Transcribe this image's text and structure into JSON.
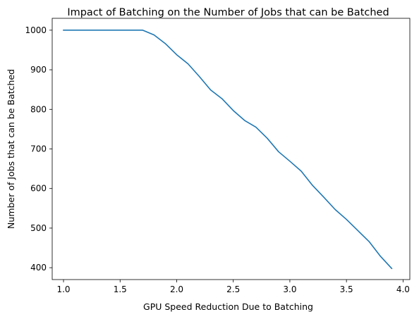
{
  "chart_data": {
    "type": "line",
    "title": "Impact of Batching on the Number of Jobs that can be Batched",
    "xlabel": "GPU Speed Reduction Due to Batching",
    "ylabel": "Number of Jobs that can be Batched",
    "xlim": [
      0.9,
      4.06
    ],
    "ylim": [
      370,
      1030
    ],
    "xticks": [
      1.0,
      1.5,
      2.0,
      2.5,
      3.0,
      3.5,
      4.0
    ],
    "xtick_labels": [
      "1.0",
      "1.5",
      "2.0",
      "2.5",
      "3.0",
      "3.5",
      "4.0"
    ],
    "yticks": [
      400,
      500,
      600,
      700,
      800,
      900,
      1000
    ],
    "ytick_labels": [
      "400",
      "500",
      "600",
      "700",
      "800",
      "900",
      "1000"
    ],
    "grid": false,
    "legend": "none",
    "series": [
      {
        "color": "#1f77b4",
        "x": [
          1.0,
          1.1,
          1.2,
          1.3,
          1.4,
          1.5,
          1.6,
          1.7,
          1.8,
          1.9,
          2.0,
          2.1,
          2.2,
          2.3,
          2.4,
          2.5,
          2.6,
          2.7,
          2.8,
          2.9,
          3.0,
          3.1,
          3.2,
          3.3,
          3.4,
          3.5,
          3.6,
          3.7,
          3.8,
          3.9
        ],
        "y": [
          1000,
          1000,
          1000,
          1000,
          1000,
          1000,
          1000,
          1000,
          988,
          966,
          938,
          915,
          883,
          849,
          827,
          797,
          772,
          755,
          727,
          693,
          669,
          644,
          608,
          578,
          547,
          522,
          494,
          466,
          429,
          398
        ]
      }
    ]
  }
}
